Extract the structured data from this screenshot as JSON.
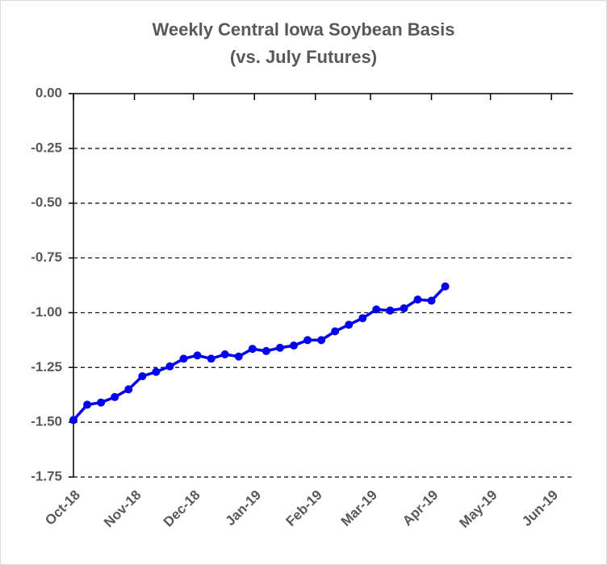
{
  "chart_data": {
    "type": "line",
    "title": "Weekly Central Iowa Soybean Basis",
    "subtitle": "(vs. July Futures)",
    "x": [
      0,
      7,
      14,
      21,
      28,
      35,
      42,
      49,
      56,
      63,
      70,
      77,
      84,
      91,
      98,
      105,
      112,
      119,
      126,
      133,
      140,
      147,
      154,
      161,
      168,
      175,
      182,
      189
    ],
    "series": [
      {
        "color": "#0000ee",
        "values": [
          -1.49,
          -1.42,
          -1.41,
          -1.385,
          -1.35,
          -1.29,
          -1.27,
          -1.245,
          -1.21,
          -1.195,
          -1.21,
          -1.19,
          -1.2,
          -1.165,
          -1.175,
          -1.16,
          -1.15,
          -1.125,
          -1.125,
          -1.085,
          -1.055,
          -1.025,
          -0.985,
          -0.99,
          -0.98,
          -0.94,
          -0.945,
          -0.88
        ]
      }
    ],
    "xlim": [
      0,
      254
    ],
    "xticks": [
      {
        "value": 0,
        "label": "Oct-18"
      },
      {
        "value": 31,
        "label": "Nov-18"
      },
      {
        "value": 61,
        "label": "Dec-18"
      },
      {
        "value": 92,
        "label": "Jan-19"
      },
      {
        "value": 123,
        "label": "Feb-19"
      },
      {
        "value": 151,
        "label": "Mar-19"
      },
      {
        "value": 182,
        "label": "Apr-19"
      },
      {
        "value": 212,
        "label": "May-19"
      },
      {
        "value": 243,
        "label": "Jun-19"
      }
    ],
    "ylim": [
      -1.75,
      0
    ],
    "yticks": [
      {
        "value": 0,
        "label": "0.00"
      },
      {
        "value": -0.25,
        "label": "-0.25"
      },
      {
        "value": -0.5,
        "label": "-0.50"
      },
      {
        "value": -0.75,
        "label": "-0.75"
      },
      {
        "value": -1,
        "label": "-1.00"
      },
      {
        "value": -1.25,
        "label": "-1.25"
      },
      {
        "value": -1.5,
        "label": "-1.50"
      },
      {
        "value": -1.75,
        "label": "-1.75"
      }
    ],
    "grid": true
  }
}
